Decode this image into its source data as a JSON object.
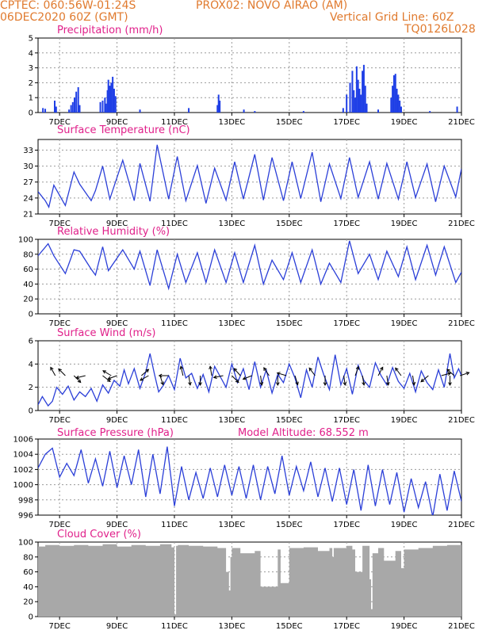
{
  "header": {
    "left_line1": "CPTEC:   060:56W-01:24S",
    "center_line1": "PROX02: NOVO AIRAO (AM)",
    "left_line2": "06DEC2020 60Z (GMT)",
    "right_line2": "Vertical Grid Line: 60Z",
    "right_line3": "TQ0126L028"
  },
  "colors": {
    "header_text": "#e07a2e",
    "panel_title": "#e0208a",
    "line": "#2b3fd8",
    "bar": "#1f3fe6",
    "cloud": "#a8a8a8",
    "grid": "#9a9a9a",
    "arrow": "#000000"
  },
  "x_axis": {
    "tick_labels": [
      "7DEC",
      "9DEC",
      "11DEC",
      "13DEC",
      "15DEC",
      "17DEC",
      "19DEC",
      "21DEC"
    ],
    "tick_days": [
      7,
      9,
      11,
      13,
      15,
      17,
      19,
      21
    ],
    "range_days": [
      6.25,
      21.0
    ]
  },
  "chart_data": [
    {
      "type": "bar",
      "title": "Precipitation (mm/h)",
      "ylim": [
        0,
        5
      ],
      "yticks": [
        0,
        1,
        2,
        3,
        4,
        5
      ],
      "x": [
        6.42,
        6.5,
        6.83,
        6.88,
        7.33,
        7.4,
        7.46,
        7.52,
        7.58,
        7.65,
        7.7,
        8.42,
        8.5,
        8.58,
        8.62,
        8.67,
        8.7,
        8.75,
        8.8,
        8.85,
        8.9,
        8.95,
        9.8,
        11.5,
        12.5,
        12.54,
        12.58,
        13.42,
        13.8,
        15.5,
        16.88,
        17.0,
        17.12,
        17.2,
        17.25,
        17.3,
        17.35,
        17.4,
        17.45,
        17.5,
        17.55,
        17.6,
        17.65,
        17.7,
        18.1,
        18.55,
        18.6,
        18.65,
        18.7,
        18.75,
        18.8,
        18.85,
        18.9,
        19.9,
        20.85
      ],
      "values": [
        0.3,
        0.25,
        0.8,
        0.4,
        0.2,
        0.5,
        0.7,
        1.0,
        1.4,
        1.7,
        0.5,
        0.7,
        0.8,
        1.0,
        0.6,
        1.5,
        2.2,
        1.8,
        2.0,
        2.4,
        1.6,
        1.1,
        0.2,
        0.3,
        0.5,
        1.2,
        0.8,
        0.2,
        0.1,
        0.1,
        0.3,
        1.2,
        2.0,
        2.8,
        1.5,
        1.0,
        3.1,
        2.2,
        1.6,
        1.2,
        2.8,
        3.2,
        1.8,
        0.6,
        0.2,
        1.0,
        1.8,
        2.5,
        2.6,
        1.6,
        1.2,
        0.8,
        0.4,
        0.1,
        0.4
      ]
    },
    {
      "type": "line",
      "title": "Surface Temperature (nC)",
      "ylim": [
        21,
        35
      ],
      "yticks": [
        21,
        24,
        27,
        30,
        33
      ],
      "x": [
        6.25,
        6.5,
        6.625,
        6.8,
        7.2,
        7.5,
        7.7,
        8.1,
        8.25,
        8.5,
        8.75,
        9.2,
        9.6,
        9.8,
        10.15,
        10.4,
        10.8,
        11.1,
        11.4,
        11.8,
        12.1,
        12.4,
        12.8,
        13.1,
        13.4,
        13.8,
        14.1,
        14.4,
        14.8,
        15.1,
        15.4,
        15.8,
        16.1,
        16.4,
        16.8,
        17.1,
        17.4,
        17.8,
        18.1,
        18.4,
        18.8,
        19.1,
        19.4,
        19.8,
        20.1,
        20.4,
        20.8,
        21.0
      ],
      "values": [
        25.2,
        23.5,
        22.3,
        26.4,
        22.6,
        28.9,
        26.6,
        23.5,
        25.4,
        30.0,
        23.8,
        31.1,
        23.5,
        30.5,
        23.4,
        34.0,
        23.8,
        31.8,
        23.5,
        30.1,
        23.0,
        29.6,
        23.6,
        30.8,
        23.8,
        32.2,
        23.6,
        31.6,
        23.5,
        30.8,
        23.9,
        32.6,
        23.3,
        30.4,
        23.9,
        31.6,
        24.1,
        30.8,
        23.8,
        30.5,
        23.8,
        30.8,
        24.1,
        30.4,
        23.3,
        30.0,
        24.2,
        29.5
      ]
    },
    {
      "type": "line",
      "title": "Relative Humidity (%)",
      "ylim": [
        0,
        100
      ],
      "yticks": [
        0,
        20,
        40,
        60,
        80,
        100
      ],
      "x": [
        6.25,
        6.6,
        6.8,
        7.2,
        7.5,
        7.7,
        8.1,
        8.25,
        8.5,
        8.7,
        9.2,
        9.6,
        9.8,
        10.15,
        10.4,
        10.8,
        11.1,
        11.4,
        11.8,
        12.1,
        12.4,
        12.8,
        13.1,
        13.4,
        13.8,
        14.1,
        14.4,
        14.8,
        15.1,
        15.4,
        15.8,
        16.1,
        16.4,
        16.8,
        17.1,
        17.4,
        17.8,
        18.1,
        18.4,
        18.8,
        19.1,
        19.4,
        19.8,
        20.1,
        20.4,
        20.8,
        21.0
      ],
      "values": [
        78,
        94,
        78,
        54,
        86,
        84,
        60,
        52,
        90,
        58,
        86,
        60,
        84,
        38,
        86,
        34,
        80,
        42,
        82,
        42,
        86,
        42,
        82,
        42,
        92,
        40,
        72,
        46,
        82,
        42,
        86,
        40,
        68,
        42,
        98,
        54,
        80,
        46,
        84,
        50,
        90,
        46,
        92,
        52,
        90,
        42,
        56
      ]
    },
    {
      "type": "line",
      "title": "Surface Wind (m/s)",
      "ylim": [
        0,
        6
      ],
      "yticks": [
        0,
        2,
        4,
        6
      ],
      "x": [
        6.25,
        6.4,
        6.6,
        6.75,
        6.9,
        7.1,
        7.3,
        7.5,
        7.7,
        7.9,
        8.1,
        8.3,
        8.5,
        8.7,
        8.9,
        9.1,
        9.25,
        9.4,
        9.6,
        9.8,
        10.0,
        10.15,
        10.3,
        10.45,
        10.6,
        10.8,
        11.0,
        11.2,
        11.4,
        11.6,
        11.8,
        12.0,
        12.2,
        12.4,
        12.6,
        12.8,
        13.0,
        13.2,
        13.4,
        13.6,
        13.8,
        14.0,
        14.2,
        14.4,
        14.6,
        14.8,
        15.0,
        15.2,
        15.4,
        15.6,
        15.8,
        16.0,
        16.2,
        16.4,
        16.6,
        16.8,
        17.0,
        17.2,
        17.4,
        17.6,
        17.8,
        18.0,
        18.2,
        18.4,
        18.6,
        18.8,
        19.0,
        19.2,
        19.4,
        19.6,
        19.8,
        20.0,
        20.2,
        20.4,
        20.6,
        20.75,
        20.9,
        21.0
      ],
      "values": [
        0.5,
        1.2,
        0.4,
        0.8,
        2.0,
        1.4,
        2.1,
        0.9,
        1.6,
        1.2,
        1.9,
        0.8,
        2.2,
        1.5,
        2.6,
        2.1,
        3.5,
        2.3,
        3.6,
        1.9,
        3.3,
        4.9,
        3.2,
        1.6,
        2.1,
        3.0,
        1.8,
        4.5,
        2.8,
        3.2,
        1.9,
        3.1,
        1.6,
        3.8,
        2.9,
        2.0,
        4.0,
        2.4,
        3.6,
        1.8,
        4.2,
        2.0,
        3.5,
        1.5,
        3.1,
        2.4,
        4.0,
        2.8,
        1.1,
        3.5,
        2.0,
        4.6,
        3.1,
        1.8,
        4.8,
        2.2,
        3.6,
        1.4,
        3.9,
        2.6,
        2.0,
        4.1,
        3.0,
        2.2,
        3.7,
        2.5,
        1.9,
        3.2,
        1.6,
        3.4,
        2.4,
        1.8,
        3.5,
        2.0,
        4.9,
        2.8,
        3.6,
        3.0
      ],
      "arrows": [
        {
          "day": 6.85,
          "u": -0.5,
          "v": 0.9
        },
        {
          "day": 7.2,
          "u": -1.0,
          "v": 1.0
        },
        {
          "day": 7.5,
          "u": 0.8,
          "v": -0.8
        },
        {
          "day": 7.9,
          "u": -1.2,
          "v": -0.3
        },
        {
          "day": 8.5,
          "u": 0.9,
          "v": -0.7
        },
        {
          "day": 8.8,
          "u": -1.0,
          "v": 0.6
        },
        {
          "day": 9.0,
          "u": -1.1,
          "v": -0.4
        },
        {
          "day": 9.85,
          "u": 1.4,
          "v": 1.2
        },
        {
          "day": 10.1,
          "u": -1.6,
          "v": -0.9
        },
        {
          "day": 10.5,
          "u": 0.4,
          "v": -1.2
        },
        {
          "day": 10.8,
          "u": -1.2,
          "v": 0.0
        },
        {
          "day": 11.3,
          "u": -0.3,
          "v": 1.3
        },
        {
          "day": 11.5,
          "u": 0.2,
          "v": -1.3
        },
        {
          "day": 11.9,
          "u": 0.0,
          "v": -1.2
        },
        {
          "day": 12.3,
          "u": -0.2,
          "v": 1.2
        },
        {
          "day": 12.7,
          "u": -1.0,
          "v": -0.2
        },
        {
          "day": 13.0,
          "u": 0.6,
          "v": -0.6
        },
        {
          "day": 13.3,
          "u": -0.8,
          "v": 0.9
        },
        {
          "day": 13.7,
          "u": -1.0,
          "v": -0.4
        },
        {
          "day": 14.0,
          "u": 0.2,
          "v": -1.4
        },
        {
          "day": 14.3,
          "u": -0.6,
          "v": 0.9
        },
        {
          "day": 14.6,
          "u": 0.0,
          "v": -1.2
        },
        {
          "day": 14.9,
          "u": -1.0,
          "v": 0.3
        },
        {
          "day": 15.2,
          "u": 0.4,
          "v": -1.3
        },
        {
          "day": 15.9,
          "u": -0.6,
          "v": 0.8
        },
        {
          "day": 16.25,
          "u": 0.0,
          "v": -1.6
        },
        {
          "day": 16.9,
          "u": 0.2,
          "v": -1.4
        },
        {
          "day": 17.3,
          "u": 0.5,
          "v": 1.4
        },
        {
          "day": 17.55,
          "u": 0.2,
          "v": -1.2
        },
        {
          "day": 18.1,
          "u": 0.7,
          "v": 1.3
        },
        {
          "day": 18.4,
          "u": 0.2,
          "v": -1.3
        },
        {
          "day": 18.9,
          "u": -0.6,
          "v": 0.8
        },
        {
          "day": 19.3,
          "u": 0.2,
          "v": -1.2
        },
        {
          "day": 19.85,
          "u": -0.6,
          "v": -0.5
        },
        {
          "day": 20.3,
          "u": 1.5,
          "v": 0.4
        },
        {
          "day": 20.6,
          "u": 0.0,
          "v": -1.4
        },
        {
          "day": 20.75,
          "u": -0.8,
          "v": 0.7
        },
        {
          "day": 20.95,
          "u": 1.2,
          "v": 0.4
        }
      ]
    },
    {
      "type": "line",
      "title": "Surface Pressure (hPa)",
      "annotation": "Model Altitude: 68.552 m",
      "ylim": [
        996,
        1006
      ],
      "yticks": [
        996,
        998,
        1000,
        1002,
        1004,
        1006
      ],
      "x": [
        6.25,
        6.5,
        6.75,
        7.0,
        7.25,
        7.5,
        7.75,
        8.0,
        8.25,
        8.5,
        8.75,
        9.0,
        9.25,
        9.5,
        9.75,
        10.0,
        10.25,
        10.5,
        10.75,
        11.0,
        11.25,
        11.5,
        11.75,
        12.0,
        12.25,
        12.5,
        12.75,
        13.0,
        13.25,
        13.5,
        13.75,
        14.0,
        14.25,
        14.5,
        14.75,
        15.0,
        15.25,
        15.5,
        15.75,
        16.0,
        16.25,
        16.5,
        16.75,
        17.0,
        17.25,
        17.5,
        17.75,
        18.0,
        18.25,
        18.5,
        18.75,
        19.0,
        19.25,
        19.5,
        19.75,
        20.0,
        20.25,
        20.5,
        20.75,
        21.0
      ],
      "values": [
        1002.2,
        1004.0,
        1004.8,
        1001.0,
        1002.8,
        1001.2,
        1004.6,
        1000.2,
        1003.4,
        999.8,
        1004.4,
        999.6,
        1003.8,
        1000.0,
        1004.6,
        998.4,
        1004.0,
        998.8,
        1005.0,
        997.2,
        1002.4,
        998.0,
        1001.6,
        998.2,
        1002.2,
        998.4,
        1002.6,
        998.6,
        1002.4,
        998.2,
        1002.6,
        998.0,
        1002.4,
        998.8,
        1003.8,
        998.6,
        1002.4,
        999.2,
        1003.0,
        998.4,
        1002.2,
        997.8,
        1002.2,
        997.4,
        1002.0,
        996.6,
        1002.6,
        997.2,
        1002.0,
        997.4,
        1001.6,
        996.4,
        1000.8,
        997.0,
        1000.4,
        995.8,
        1001.4,
        996.6,
        1001.8,
        997.8
      ]
    },
    {
      "type": "area",
      "title": "Cloud Cover (%)",
      "ylim": [
        0,
        100
      ],
      "yticks": [
        0,
        20,
        40,
        60,
        80,
        100
      ],
      "x": [
        6.25,
        6.5,
        7.0,
        7.5,
        8.0,
        8.5,
        9.0,
        9.5,
        10.0,
        10.5,
        10.9,
        11.0,
        11.06,
        11.12,
        11.5,
        12.0,
        12.5,
        12.8,
        12.9,
        12.95,
        13.0,
        13.3,
        13.8,
        14.0,
        14.6,
        14.7,
        15.0,
        15.5,
        16.0,
        16.4,
        16.5,
        16.55,
        17.0,
        17.2,
        17.3,
        17.55,
        17.8,
        17.85,
        17.9,
        18.1,
        18.3,
        18.7,
        18.9,
        19.0,
        19.5,
        20.0,
        20.5,
        21.0
      ],
      "values": [
        94,
        96,
        95,
        96,
        95,
        97,
        94,
        96,
        95,
        97,
        93,
        3,
        95,
        96,
        95,
        94,
        92,
        60,
        35,
        80,
        92,
        85,
        88,
        40,
        90,
        45,
        92,
        93,
        88,
        92,
        80,
        92,
        95,
        90,
        60,
        95,
        50,
        10,
        85,
        92,
        75,
        88,
        65,
        90,
        92,
        95,
        96,
        94
      ]
    }
  ]
}
